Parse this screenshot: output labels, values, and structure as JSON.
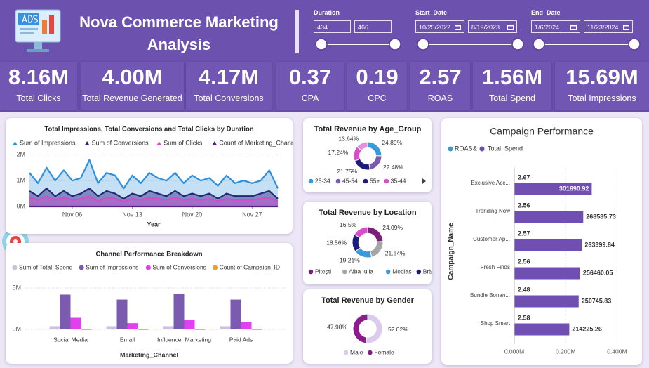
{
  "header": {
    "title": "Nova Commerce Marketing Analysis",
    "filters": [
      {
        "label": "Duration",
        "from": "434",
        "to": "466"
      },
      {
        "label": "Start_Date",
        "from": "10/25/2022",
        "to": "8/19/2023"
      },
      {
        "label": "End_Date",
        "from": "1/6/2024",
        "to": "11/23/2024"
      }
    ]
  },
  "kpis": [
    {
      "value": "8.16M",
      "label": "Total Clicks"
    },
    {
      "value": "4.00M",
      "label": "Total Revenue Generated"
    },
    {
      "value": "4.17M",
      "label": "Total Conversions"
    },
    {
      "value": "0.37",
      "label": "CPA"
    },
    {
      "value": "0.19",
      "label": "CPC"
    },
    {
      "value": "2.57",
      "label": "ROAS"
    },
    {
      "value": "1.56M",
      "label": "Total Spend"
    },
    {
      "value": "15.69M",
      "label": "Total Impressions"
    }
  ],
  "chart_data": [
    {
      "type": "line",
      "title": "Total Impressions, Total Conversions and Total Clicks by Duration",
      "x": [
        1,
        2,
        3,
        4,
        5,
        6,
        7,
        8,
        9,
        10,
        11,
        12,
        13,
        14,
        15,
        16,
        17,
        18,
        19,
        20,
        21,
        22,
        23,
        24,
        25,
        26,
        27,
        28,
        29,
        30
      ],
      "xlim": [
        1,
        30
      ],
      "xticks": [
        {
          "value": 6,
          "label": "Nov 06"
        },
        {
          "value": 13,
          "label": "Nov 13"
        },
        {
          "value": 20,
          "label": "Nov 20"
        },
        {
          "value": 27,
          "label": "Nov 27"
        }
      ],
      "xlabel": "Year",
      "ylim": [
        0,
        2200000
      ],
      "yticks": [
        {
          "value": 0,
          "label": "0M"
        },
        {
          "value": 1000000,
          "label": "1M"
        },
        {
          "value": 2000000,
          "label": "2M"
        }
      ],
      "grid": true,
      "series": [
        {
          "name": "Sum of Impressions",
          "color": "#2e8fdc",
          "values": [
            1300000,
            900000,
            1500000,
            1000000,
            1400000,
            1000000,
            1100000,
            1800000,
            900000,
            1300000,
            1200000,
            700000,
            1200000,
            900000,
            1300000,
            1100000,
            1000000,
            1300000,
            900000,
            1200000,
            1000000,
            1100000,
            800000,
            1200000,
            900000,
            1000000,
            900000,
            1000000,
            1400000,
            700000
          ]
        },
        {
          "name": "Sum of Conversions",
          "color": "#26267c",
          "values": [
            600000,
            400000,
            700000,
            400000,
            600000,
            400000,
            500000,
            700000,
            400000,
            600000,
            500000,
            300000,
            500000,
            400000,
            600000,
            500000,
            400000,
            600000,
            400000,
            500000,
            400000,
            500000,
            300000,
            500000,
            400000,
            400000,
            400000,
            500000,
            600000,
            300000
          ]
        },
        {
          "name": "Sum of Clicks",
          "color": "#d848cc",
          "values": [
            350000,
            250000,
            400000,
            250000,
            350000,
            250000,
            300000,
            400000,
            200000,
            350000,
            300000,
            200000,
            300000,
            250000,
            350000,
            300000,
            250000,
            350000,
            250000,
            300000,
            250000,
            300000,
            200000,
            300000,
            250000,
            250000,
            250000,
            300000,
            350000,
            200000
          ]
        },
        {
          "name": "Count of Marketing_Channel",
          "color": "#5a1a8a",
          "values": [
            34,
            28,
            41,
            30,
            37,
            29,
            33,
            45,
            27,
            36,
            32,
            24,
            33,
            28,
            36,
            31,
            29,
            35,
            27,
            32,
            29,
            31,
            25,
            33,
            27,
            29,
            27,
            30,
            38,
            23
          ]
        }
      ]
    },
    {
      "type": "bar",
      "title": "Channel Performance Breakdown",
      "categories": [
        "Social Media",
        "Email",
        "Influencer Marketing",
        "Paid Ads"
      ],
      "xlabel": "Marketing_Channel",
      "ylim": [
        0,
        5800000
      ],
      "yticks": [
        {
          "value": 0,
          "label": "0M"
        },
        {
          "value": 5000000,
          "label": "5M"
        }
      ],
      "series": [
        {
          "name": "Sum of Total_Spend",
          "color": "#cbc3d9",
          "values": [
            392000,
            390000,
            391000,
            387000
          ]
        },
        {
          "name": "Sum of Impressions",
          "color": "#7a5bb0",
          "values": [
            4200000,
            3600000,
            4300000,
            3600000
          ]
        },
        {
          "name": "Sum of Conversions",
          "color": "#e040f0",
          "values": [
            1400000,
            750000,
            1100000,
            920000
          ]
        },
        {
          "name": "Count of Campaign_ID",
          "color": "#f0a020",
          "values": [
            2500,
            2450,
            2550,
            2500
          ]
        }
      ]
    },
    {
      "type": "donut",
      "title": "Total Revenue by Age_Group",
      "categories": [
        "25-34",
        "45-54",
        "55+",
        "35-44",
        null
      ],
      "values": [
        24.89,
        22.48,
        21.75,
        17.24,
        13.64
      ],
      "value_labels": [
        "24.89%",
        "22.48%",
        "21.75%",
        "17.24%",
        "13.64%"
      ],
      "colors": [
        "#3a9ad9",
        "#7a5bb0",
        "#1c1c7a",
        "#d64fc8",
        "#e58fe0"
      ]
    },
    {
      "type": "donut",
      "title": "Total Revenue by Location",
      "categories": [
        "Pitești",
        "Alba Iulia",
        "Mediaș",
        "Brăila",
        null
      ],
      "values": [
        24.09,
        21.64,
        19.21,
        18.56,
        16.5
      ],
      "value_labels": [
        "24.09%",
        "21.64%",
        "19.21%",
        "18.56%",
        "16.5%"
      ],
      "colors": [
        "#7b1f7a",
        "#a6a6a6",
        "#3a9ad9",
        "#1c1c7a",
        "#d64fc8"
      ]
    },
    {
      "type": "donut",
      "title": "Total Revenue by Gender",
      "categories": [
        "Male",
        "Female"
      ],
      "values": [
        52.02,
        47.98
      ],
      "value_labels": [
        "52.02%",
        "47.98%"
      ],
      "colors": [
        "#dccbee",
        "#8b1c8b"
      ]
    },
    {
      "type": "hbar",
      "title": "Campaign Performance",
      "categories": [
        "Exclusive Acc...",
        "Trending Now",
        "Customer Ap...",
        "Fresh Finds",
        "Bundle Bonan...",
        "Shop Smart"
      ],
      "legend_joiner": "&",
      "ylabel": "Campaign_Name",
      "xlim": [
        0,
        470000
      ],
      "xticks": [
        {
          "value": 0,
          "label": "0.000M"
        },
        {
          "value": 200000,
          "label": "0.200M"
        },
        {
          "value": 400000,
          "label": "0.400M"
        }
      ],
      "series": [
        {
          "name": "ROAS",
          "color": "#3a9ad9",
          "values": [
            2.67,
            2.56,
            2.57,
            2.56,
            2.48,
            2.58
          ]
        },
        {
          "name": "Total_Spend",
          "color": "#6f4fb0",
          "values": [
            301690.92,
            268585.73,
            263399.84,
            256460.05,
            250745.83,
            214225.26
          ]
        }
      ]
    }
  ]
}
